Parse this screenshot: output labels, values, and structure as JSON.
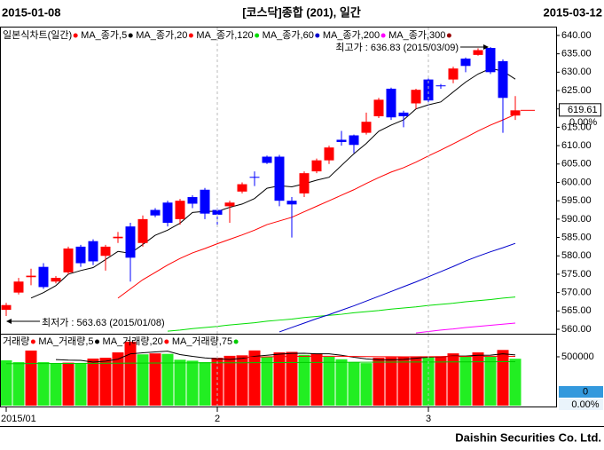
{
  "chart_data": {
    "type": "candlestick",
    "start_label": "2015-01-08",
    "title": "[코스닥]종합 (201), 일간",
    "end_label": "2015-03-12",
    "chart_label": "일본식차트(일간)",
    "up_color": "#ff0000",
    "down_color": "#0000ff",
    "open": [
      565.3,
      570,
      574.2,
      577,
      573,
      575.5,
      582.5,
      584,
      580,
      584.8,
      588,
      583.5,
      592.5,
      594.5,
      590,
      596,
      598,
      592.5,
      593.5,
      597.5,
      601.5,
      607,
      607,
      595,
      597,
      603,
      606,
      611.6,
      612.8,
      613.5,
      618,
      625.5,
      619,
      621.5,
      628,
      626.4,
      628,
      633.7,
      634.7,
      636.6,
      633,
      618.2
    ],
    "high": [
      567.2,
      574,
      576.5,
      578,
      574.5,
      582.5,
      583,
      584.5,
      583,
      586.5,
      589,
      591,
      593,
      595,
      595.5,
      596.5,
      598.5,
      593,
      595,
      600,
      603,
      607.3,
      607.5,
      596,
      603,
      606.5,
      610,
      614,
      613,
      619,
      623,
      625.8,
      619.5,
      625.5,
      628.3,
      626.8,
      631.5,
      634,
      636.5,
      636.83,
      633.5,
      623.5
    ],
    "low": [
      563.63,
      569.5,
      572,
      571,
      572.5,
      575,
      577,
      577.5,
      576,
      583.5,
      573,
      582.5,
      590.5,
      588,
      588.5,
      593,
      590,
      588,
      589,
      597,
      599,
      605,
      593.5,
      585,
      596,
      602.5,
      605,
      610,
      608,
      613,
      617.5,
      617,
      615,
      620,
      621,
      625.5,
      627,
      630,
      634.5,
      629.5,
      613.5,
      617
    ],
    "close": [
      566.6,
      573,
      574.6,
      571.5,
      574,
      582,
      578,
      578.5,
      582.5,
      585.2,
      579.5,
      590,
      591,
      589,
      595,
      594.2,
      591.5,
      591.2,
      594.5,
      599.5,
      601.3,
      605.3,
      595,
      594,
      602.5,
      606,
      609.5,
      611,
      610.2,
      616.5,
      622.5,
      617.7,
      618,
      625.2,
      622.3,
      626.3,
      631,
      631.7,
      636,
      630,
      623,
      619.61
    ],
    "change_label": "0.00%",
    "series": [
      {
        "name": "MA_종가,5",
        "color": "#000000",
        "values": [
          null,
          null,
          568.5,
          570,
          571.9,
          575,
          576,
          576.8,
          579,
          581.2,
          580.7,
          583.1,
          585.6,
          587,
          588.9,
          591.8,
          592.1,
          592.1,
          593.2,
          594.1,
          595.6,
          598.4,
          599.1,
          598.8,
          599.6,
          600.6,
          601.4,
          604.6,
          607.8,
          610.6,
          613.9,
          615.6,
          617,
          620,
          621.1,
          621.9,
          624.6,
          627.3,
          629.5,
          631,
          630.3,
          628.1
        ]
      },
      {
        "name": "MA_종가,20",
        "color": "#ff0000",
        "values": [
          null,
          null,
          null,
          null,
          null,
          null,
          null,
          null,
          null,
          568.5,
          571,
          573.5,
          575.5,
          577.5,
          579.3,
          580.8,
          582,
          583.3,
          584.5,
          585.7,
          587,
          588.5,
          589.5,
          590.5,
          592,
          593.5,
          595,
          596.5,
          598,
          599.7,
          601.3,
          602.8,
          604,
          605.5,
          607.2,
          608.8,
          610.5,
          612.2,
          614,
          615.6,
          617,
          618.5
        ]
      },
      {
        "name": "MA_종가,120",
        "color": "#00dd00",
        "values": [
          null,
          null,
          null,
          null,
          null,
          null,
          null,
          null,
          null,
          null,
          null,
          null,
          null,
          559.5,
          559.8,
          560.2,
          560.5,
          560.8,
          561.2,
          561.5,
          561.8,
          562.2,
          562.5,
          562.8,
          563.2,
          563.5,
          563.8,
          564.1,
          564.5,
          564.8,
          565.1,
          565.5,
          565.8,
          566.1,
          566.5,
          566.8,
          567.1,
          567.5,
          567.8,
          568.1,
          568.5,
          568.8
        ]
      },
      {
        "name": "MA_종가,60",
        "color": "#0000cc",
        "values": [
          null,
          null,
          null,
          null,
          null,
          null,
          null,
          null,
          null,
          null,
          null,
          null,
          null,
          null,
          null,
          null,
          null,
          null,
          null,
          null,
          null,
          null,
          559.3,
          560.5,
          561.7,
          562.9,
          564,
          565.2,
          566.4,
          567.7,
          569,
          570.3,
          571.6,
          572.9,
          574.3,
          575.7,
          577.1,
          578.6,
          579.9,
          581.1,
          582.2,
          583.4
        ]
      },
      {
        "name": "MA_종가,200",
        "color": "#ff00ff",
        "values": [
          null,
          null,
          null,
          null,
          null,
          null,
          null,
          null,
          null,
          null,
          null,
          null,
          null,
          null,
          null,
          null,
          null,
          null,
          null,
          null,
          null,
          null,
          null,
          null,
          null,
          null,
          null,
          null,
          null,
          null,
          null,
          null,
          null,
          559,
          559.4,
          559.8,
          560.1,
          560.5,
          560.8,
          561.1,
          561.4,
          561.7
        ]
      },
      {
        "name": "MA_종가,300",
        "color": "#990000"
      }
    ],
    "ylim": [
      558.8,
      642.4
    ],
    "yticks": [
      {
        "value": 640,
        "label": "640.00"
      },
      {
        "value": 635,
        "label": "635.00"
      },
      {
        "value": 630,
        "label": "630.00"
      },
      {
        "value": 625,
        "label": "625.00"
      },
      {
        "value": 620,
        "label": "620.00"
      },
      {
        "value": 615,
        "label": "615.00"
      },
      {
        "value": 610,
        "label": "610.00"
      },
      {
        "value": 605,
        "label": "605.00"
      },
      {
        "value": 600,
        "label": "600.00"
      },
      {
        "value": 595,
        "label": "595.00"
      },
      {
        "value": 590,
        "label": "590.00"
      },
      {
        "value": 585,
        "label": "585.00"
      },
      {
        "value": 580,
        "label": "580.00"
      },
      {
        "value": 575,
        "label": "575.00"
      },
      {
        "value": 570,
        "label": "570.00"
      },
      {
        "value": 565,
        "label": "565.00"
      },
      {
        "value": 560,
        "label": "560.00"
      }
    ],
    "annotations": [
      {
        "text": "최고가 : 636.83 (2015/03/09)",
        "index": 39,
        "color": "#dd0000"
      },
      {
        "text": "최저가 : 563.63 (2015/01/08)",
        "index": 0,
        "color": "#000099"
      }
    ],
    "x_labels": [
      {
        "index": 0,
        "label": "2015/01"
      },
      {
        "index": 17,
        "label": "2"
      },
      {
        "index": 34,
        "label": "3"
      }
    ],
    "volume": {
      "name": "거래량",
      "up_color": "#ff0000",
      "down_color": "#22ee22",
      "values": [
        464000,
        445000,
        564000,
        445000,
        436000,
        440000,
        435000,
        482000,
        490000,
        545000,
        655000,
        525000,
        535000,
        530000,
        470000,
        460000,
        445000,
        490000,
        510000,
        515000,
        565000,
        500000,
        545000,
        550000,
        520000,
        535000,
        500000,
        475000,
        445000,
        435000,
        490000,
        495000,
        500000,
        505000,
        495000,
        505000,
        535000,
        500000,
        545000,
        500000,
        570000,
        480000
      ],
      "series": [
        {
          "name": "MA_거래량,5",
          "color": "#000000",
          "values": [
            null,
            null,
            null,
            null,
            471000,
            466000,
            464000,
            445000,
            455000,
            476000,
            530000,
            541000,
            550000,
            558000,
            523000,
            504000,
            488000,
            479000,
            473000,
            484000,
            505000,
            516000,
            527000,
            535000,
            536000,
            530000,
            530000,
            516000,
            495000,
            478000,
            469000,
            468000,
            473000,
            485000,
            497000,
            500000,
            508000,
            508000,
            516000,
            517000,
            530000,
            519000
          ]
        },
        {
          "name": "MA_거래량,20",
          "color": "#ff0000",
          "values": [
            null,
            null,
            null,
            null,
            null,
            null,
            null,
            null,
            null,
            null,
            null,
            null,
            null,
            null,
            null,
            null,
            null,
            null,
            null,
            495000,
            497000,
            500000,
            502000,
            503000,
            505000,
            506000,
            506000,
            505000,
            503000,
            502000,
            501000,
            501000,
            500000,
            500000,
            501000,
            502000,
            503000,
            503000,
            504000,
            505000,
            505000,
            504000
          ]
        },
        {
          "name": "MA_거래량,75",
          "color": "#00cc00",
          "values": [
            430000,
            430000,
            431000,
            431000,
            432000,
            432000,
            433000,
            433000,
            434000,
            434000,
            435000,
            435000,
            436000,
            436000,
            437000,
            437000,
            438000,
            438000,
            439000,
            439000,
            440000,
            440000,
            441000,
            441000,
            442000,
            442000,
            443000,
            443000,
            444000,
            444000,
            445000,
            445000,
            446000,
            446000,
            447000,
            447000,
            448000,
            448000,
            449000,
            449000,
            450000,
            450000
          ]
        }
      ],
      "ylim": [
        0,
        718000
      ],
      "yticks": [
        500000
      ],
      "current": 0,
      "change_label": "0.00%"
    },
    "footer": "Daishin Securities Co. Ltd."
  }
}
